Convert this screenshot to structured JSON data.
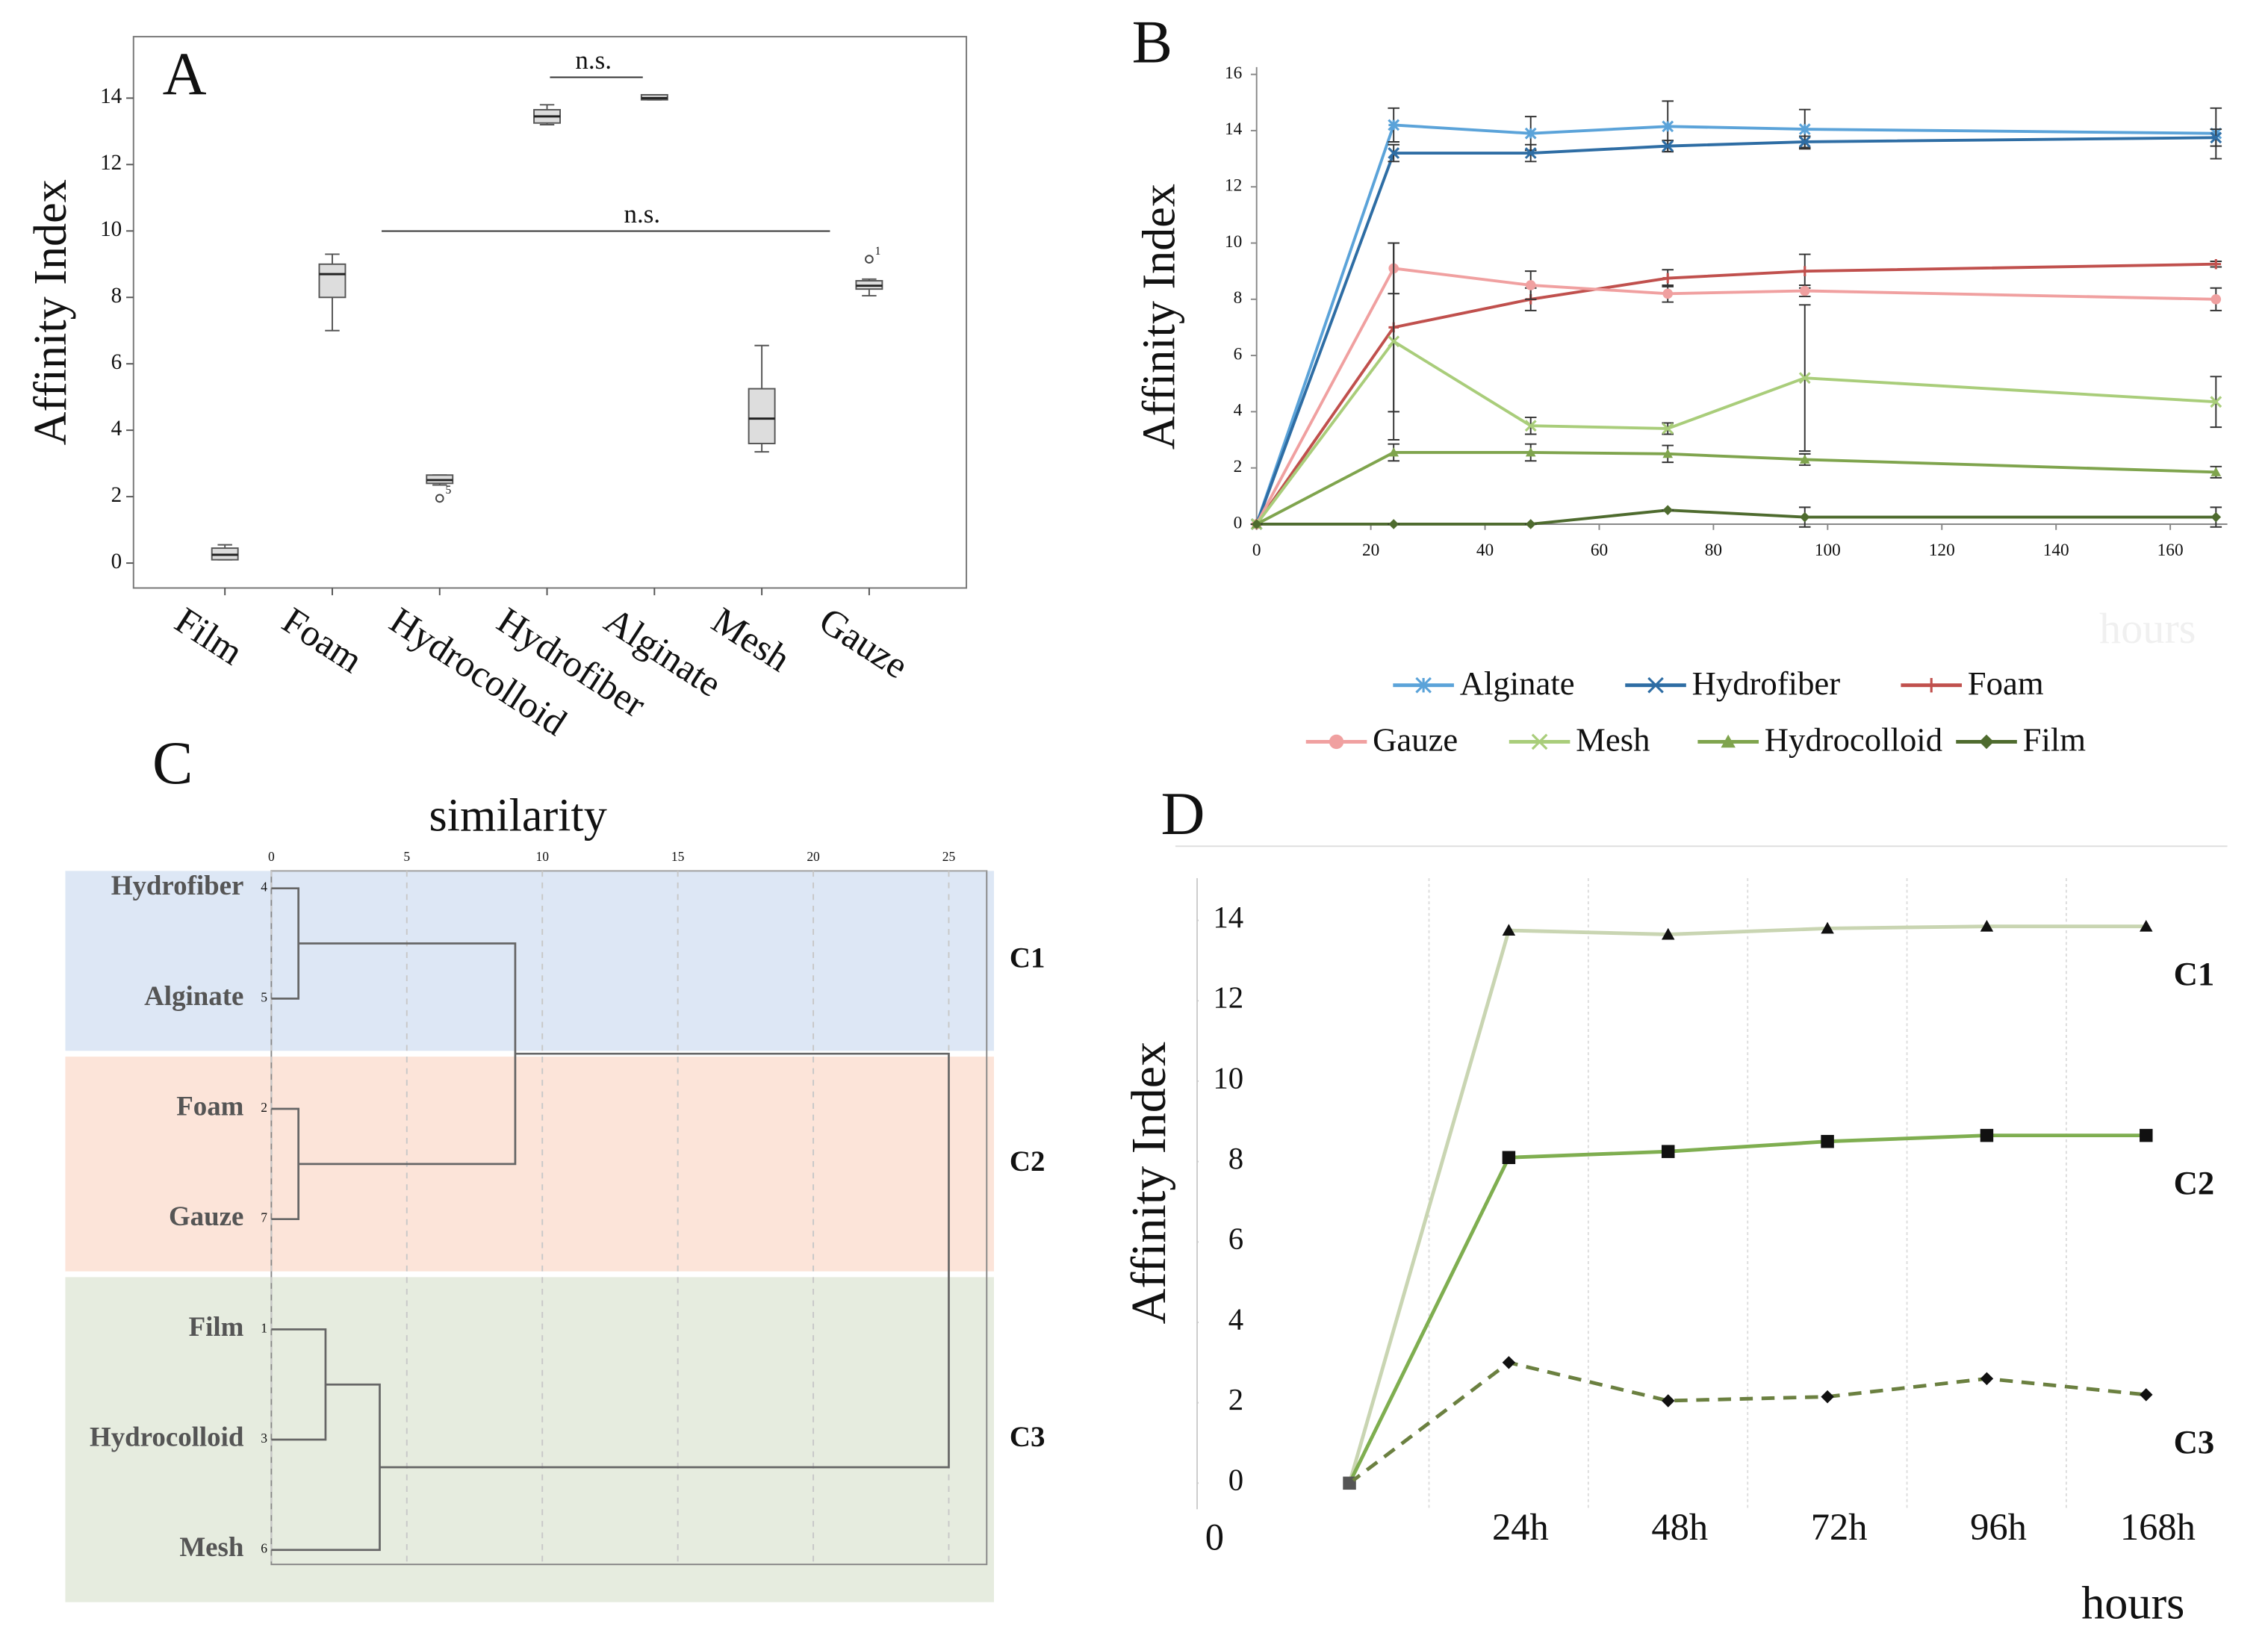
{
  "chart_data": [
    {
      "type": "box",
      "label": "A",
      "ylabel": "Affinity Index",
      "categories": [
        "Film",
        "Foam",
        "Hydrocolloid",
        "Hydrofiber",
        "Alginate",
        "Mesh",
        "Gauze"
      ],
      "boxes": [
        {
          "min": 0.1,
          "q1": 0.1,
          "median": 0.25,
          "q3": 0.45,
          "max": 0.55
        },
        {
          "min": 7.0,
          "q1": 8.0,
          "median": 8.7,
          "q3": 9.0,
          "max": 9.3
        },
        {
          "min": 2.35,
          "q1": 2.4,
          "median": 2.5,
          "q3": 2.65,
          "max": 2.65
        },
        {
          "min": 13.2,
          "q1": 13.25,
          "median": 13.45,
          "q3": 13.65,
          "max": 13.8
        },
        {
          "min": 13.95,
          "q1": 13.95,
          "median": 14.0,
          "q3": 14.1,
          "max": 14.1
        },
        {
          "min": 3.35,
          "q1": 3.6,
          "median": 4.35,
          "q3": 5.25,
          "max": 6.55
        },
        {
          "min": 8.05,
          "q1": 8.25,
          "median": 8.35,
          "q3": 8.5,
          "max": 8.55
        }
      ],
      "outliers": [
        {
          "category": 2,
          "value": 1.95,
          "label": "5"
        },
        {
          "category": 6,
          "value": 9.15,
          "label": "1"
        }
      ],
      "comparisons": [
        {
          "text": "n.s.",
          "between": [
            3,
            4
          ]
        },
        {
          "text": "n.s.",
          "between": [
            2,
            5
          ]
        }
      ],
      "color": "#555555",
      "ylim": [
        -0.75,
        15.85
      ],
      "yticks": [
        0,
        2,
        4,
        6,
        8,
        10,
        12,
        14
      ]
    },
    {
      "type": "line",
      "label": "B",
      "ylabel": "Affinity Index",
      "xlabel": "hours",
      "x": [
        0,
        24,
        48,
        72,
        96,
        168
      ],
      "series": [
        {
          "name": "Alginate",
          "color": "#5ba3d9",
          "marker": "star",
          "values": [
            0,
            14.2,
            13.9,
            14.15,
            14.05,
            13.9
          ],
          "errors": [
            0,
            0.6,
            0.6,
            0.9,
            0.7,
            0.9
          ]
        },
        {
          "name": "Hydrofiber",
          "color": "#2e6da4",
          "marker": "x",
          "values": [
            0,
            13.2,
            13.2,
            13.45,
            13.6,
            13.75
          ],
          "errors": [
            0,
            0.3,
            0.3,
            0.2,
            0.2,
            0.3
          ]
        },
        {
          "name": "Foam",
          "color": "#c0504d",
          "marker": "plus",
          "values": [
            0,
            7.0,
            8.0,
            8.75,
            9.0,
            9.25
          ],
          "errors": [
            0,
            3.0,
            0.4,
            0.3,
            0.6,
            0.1
          ]
        },
        {
          "name": "Gauze",
          "color": "#f0a0a0",
          "marker": "circle",
          "values": [
            0,
            9.1,
            8.5,
            8.2,
            8.3,
            8.0
          ],
          "errors": [
            0,
            0.9,
            0.5,
            0.3,
            0.2,
            0.4
          ]
        },
        {
          "name": "Mesh",
          "color": "#a9cd7a",
          "marker": "x",
          "values": [
            0,
            6.5,
            3.5,
            3.4,
            5.2,
            4.35
          ],
          "errors": [
            0,
            3.5,
            0.3,
            0.2,
            2.6,
            0.9
          ]
        },
        {
          "name": "Hydrocolloid",
          "color": "#7fa44d",
          "marker": "triangle",
          "values": [
            0,
            2.55,
            2.55,
            2.5,
            2.3,
            1.85
          ],
          "errors": [
            0,
            0.3,
            0.3,
            0.3,
            0.2,
            0.2
          ]
        },
        {
          "name": "Film",
          "color": "#4e6b2e",
          "marker": "diamond",
          "values": [
            0,
            0,
            0,
            0.5,
            0.25,
            0.25
          ],
          "errors": [
            0,
            0,
            0,
            0,
            0.35,
            0.35
          ]
        }
      ],
      "xlim": [
        0,
        170
      ],
      "xticks": [
        0,
        20,
        40,
        60,
        80,
        100,
        120,
        140,
        160
      ],
      "ylim": [
        0,
        16
      ],
      "yticks": [
        0,
        2,
        4,
        6,
        8,
        10,
        12,
        14,
        16
      ],
      "legend": "bottom"
    },
    {
      "type": "dendrogram",
      "label": "C",
      "title": "similarity",
      "leaves": [
        {
          "name": "Hydrofiber",
          "id": 4
        },
        {
          "name": "Alginate",
          "id": 5
        },
        {
          "name": "Foam",
          "id": 2
        },
        {
          "name": "Gauze",
          "id": 7
        },
        {
          "name": "Film",
          "id": 1
        },
        {
          "name": "Hydrocolloid",
          "id": 3
        },
        {
          "name": "Mesh",
          "id": 6
        }
      ],
      "merges": [
        {
          "items": [
            0,
            1
          ],
          "height": 1.0
        },
        {
          "items": [
            2,
            3
          ],
          "height": 1.0
        },
        {
          "items": [
            4,
            5
          ],
          "height": 2.0
        },
        {
          "items": [
            9,
            6
          ],
          "height": 4.0
        },
        {
          "items": [
            7,
            8
          ],
          "height": 9.0
        },
        {
          "items": [
            11,
            10
          ],
          "height": 25.0
        }
      ],
      "clusters": [
        {
          "name": "C1",
          "leaves": [
            0,
            1
          ],
          "color": "#dde7f5"
        },
        {
          "name": "C2",
          "leaves": [
            2,
            3
          ],
          "color": "#fce4d9"
        },
        {
          "name": "C3",
          "leaves": [
            4,
            5,
            6
          ],
          "color": "#e6ecdf"
        }
      ],
      "xlim": [
        0,
        26.4
      ],
      "xticks": [
        0,
        5,
        10,
        15,
        20,
        25
      ]
    },
    {
      "type": "line",
      "label": "D",
      "ylabel": "Affinity Index",
      "xlabel": "hours",
      "annotation": "0",
      "categories": [
        null,
        "24h",
        "48h",
        "72h",
        "96h",
        "168h"
      ],
      "series": [
        {
          "name": "C1",
          "color": "#c9d5b2",
          "marker": "triangle",
          "dashed": false,
          "values": [
            0,
            13.75,
            13.65,
            13.8,
            13.85,
            13.85
          ]
        },
        {
          "name": "C2",
          "color": "#7fae50",
          "marker": "square",
          "dashed": false,
          "values": [
            0,
            8.1,
            8.25,
            8.5,
            8.65,
            8.65
          ]
        },
        {
          "name": "C3",
          "color": "#6b8040",
          "marker": "diamond",
          "dashed": true,
          "values": [
            0,
            3.0,
            2.05,
            2.15,
            2.6,
            2.2
          ]
        }
      ],
      "ylim": [
        -0.65,
        15.05
      ],
      "yticks": [
        0,
        2,
        4,
        6,
        8,
        10,
        12,
        14
      ]
    }
  ]
}
